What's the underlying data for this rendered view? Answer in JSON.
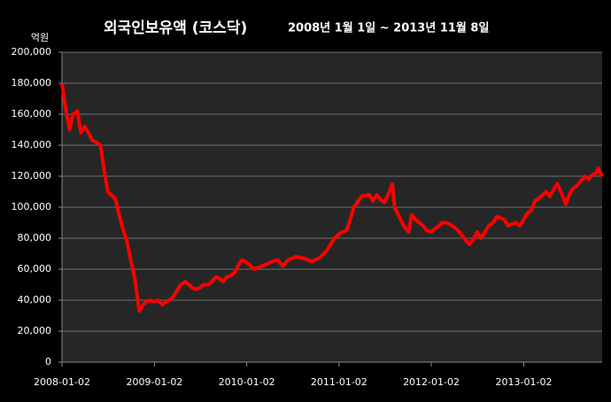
{
  "chart_data": {
    "type": "line",
    "title": "외국인보유액 (코스닥)",
    "subtitle": "2008년 1월 1일 ~ 2013년 11월 8일",
    "y_unit": "억원",
    "xlim": [
      "2008-01-02",
      "2013-11-08"
    ],
    "xticks": [
      "2008-01-02",
      "2009-01-02",
      "2010-01-02",
      "2011-01-02",
      "2012-01-02",
      "2013-01-02"
    ],
    "ylim": [
      0,
      200000
    ],
    "yticks": [
      0,
      {
        "value": 20000,
        "label": "20,000"
      },
      {
        "value": 40000,
        "label": "40,000"
      },
      {
        "value": 60000,
        "label": "60,000"
      },
      {
        "value": 80000,
        "label": "80,000"
      },
      {
        "value": 100000,
        "label": "100,000"
      },
      {
        "value": 120000,
        "label": "120,000"
      },
      {
        "value": 140000,
        "label": "140,000"
      },
      {
        "value": 160000,
        "label": "160,000"
      },
      {
        "value": 180000,
        "label": "180,000"
      },
      {
        "value": 200000,
        "label": "200,000"
      }
    ],
    "grid": true,
    "x": [
      "2008-01-02",
      "2008-01-15",
      "2008-02-01",
      "2008-02-15",
      "2008-03-03",
      "2008-03-17",
      "2008-04-01",
      "2008-04-15",
      "2008-05-02",
      "2008-05-15",
      "2008-06-02",
      "2008-06-16",
      "2008-07-01",
      "2008-07-15",
      "2008-08-01",
      "2008-08-15",
      "2008-09-01",
      "2008-09-15",
      "2008-10-01",
      "2008-10-15",
      "2008-10-28",
      "2008-11-03",
      "2008-11-17",
      "2008-12-01",
      "2008-12-15",
      "2009-01-02",
      "2009-01-15",
      "2009-02-02",
      "2009-02-16",
      "2009-03-02",
      "2009-03-16",
      "2009-04-01",
      "2009-04-15",
      "2009-05-04",
      "2009-05-18",
      "2009-06-01",
      "2009-06-15",
      "2009-07-01",
      "2009-07-15",
      "2009-08-03",
      "2009-08-17",
      "2009-09-01",
      "2009-09-15",
      "2009-10-01",
      "2009-10-15",
      "2009-11-02",
      "2009-11-16",
      "2009-12-01",
      "2009-12-15",
      "2010-01-04",
      "2010-02-01",
      "2010-03-02",
      "2010-04-01",
      "2010-05-03",
      "2010-05-25",
      "2010-06-15",
      "2010-07-15",
      "2010-08-16",
      "2010-09-15",
      "2010-10-15",
      "2010-11-15",
      "2010-12-15",
      "2011-01-04",
      "2011-01-17",
      "2011-02-01",
      "2011-02-15",
      "2011-03-02",
      "2011-03-15",
      "2011-04-01",
      "2011-05-02",
      "2011-05-16",
      "2011-06-01",
      "2011-06-15",
      "2011-07-01",
      "2011-07-15",
      "2011-08-01",
      "2011-08-10",
      "2011-08-25",
      "2011-09-15",
      "2011-10-04",
      "2011-10-17",
      "2011-11-01",
      "2011-11-15",
      "2011-12-01",
      "2011-12-15",
      "2012-01-02",
      "2012-01-16",
      "2012-02-01",
      "2012-02-15",
      "2012-03-02",
      "2012-03-15",
      "2012-04-02",
      "2012-04-16",
      "2012-05-02",
      "2012-05-15",
      "2012-06-01",
      "2012-06-15",
      "2012-07-02",
      "2012-07-16",
      "2012-08-01",
      "2012-08-16",
      "2012-09-03",
      "2012-09-17",
      "2012-10-04",
      "2012-10-17",
      "2012-11-01",
      "2012-11-15",
      "2012-12-03",
      "2012-12-17",
      "2013-01-02",
      "2013-01-15",
      "2013-02-01",
      "2013-02-15",
      "2013-03-04",
      "2013-03-18",
      "2013-04-01",
      "2013-04-15",
      "2013-05-02",
      "2013-05-15",
      "2013-06-03",
      "2013-06-17",
      "2013-07-01",
      "2013-07-15",
      "2013-08-01",
      "2013-08-16",
      "2013-09-02",
      "2013-09-16",
      "2013-10-01",
      "2013-10-15",
      "2013-10-24",
      "2013-11-08"
    ],
    "series": [
      {
        "name": "외국인보유액",
        "color": "#ff0000",
        "values": [
          180000,
          165000,
          150000,
          160000,
          162000,
          148000,
          152000,
          148000,
          143000,
          142000,
          140000,
          125000,
          110000,
          108000,
          105000,
          95000,
          85000,
          78000,
          65000,
          55000,
          40000,
          33000,
          37000,
          39000,
          40000,
          39000,
          40000,
          37000,
          39000,
          40000,
          42000,
          46000,
          50000,
          52000,
          50000,
          48000,
          47000,
          48000,
          50000,
          50000,
          52000,
          55000,
          54000,
          52000,
          55000,
          56000,
          58000,
          63000,
          66000,
          64000,
          60000,
          62000,
          64000,
          66000,
          62000,
          66000,
          68000,
          67000,
          65000,
          67000,
          72000,
          80000,
          83000,
          84000,
          85000,
          92000,
          100000,
          103000,
          107000,
          108000,
          104000,
          108000,
          105000,
          103000,
          108000,
          115000,
          100000,
          95000,
          88000,
          84000,
          95000,
          92000,
          90000,
          88000,
          85000,
          84000,
          86000,
          88000,
          90000,
          90000,
          89000,
          87000,
          85000,
          82000,
          79000,
          76000,
          79000,
          84000,
          80000,
          84000,
          88000,
          90000,
          94000,
          93000,
          92000,
          88000,
          89000,
          90000,
          88000,
          92000,
          96000,
          98000,
          104000,
          106000,
          108000,
          110000,
          107000,
          112000,
          115000,
          108000,
          102000,
          108000,
          112000,
          114000,
          117000,
          120000,
          118000,
          121000,
          122000,
          125000,
          120000
        ]
      }
    ]
  }
}
